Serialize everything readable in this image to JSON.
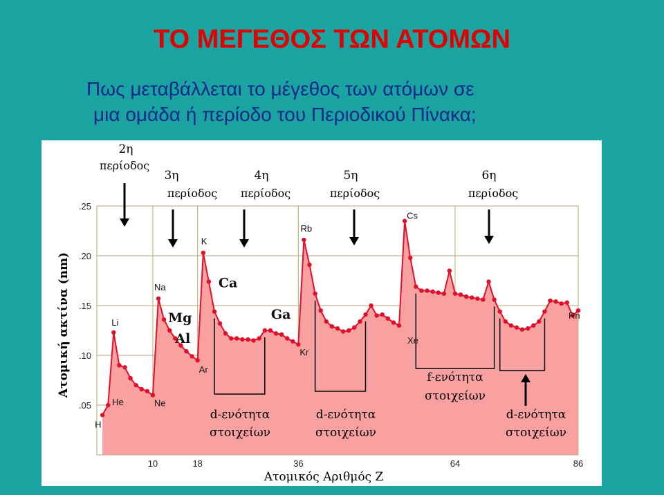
{
  "slide": {
    "title": "ΤΟ ΜΕΓΕΘΟΣ ΤΩΝ ΑΤΟΜΩΝ",
    "subtitle_line1": "Πως μεταβάλλεται το μέγεθος των ατόμων σε",
    "subtitle_line2": "μια ομάδα ή περίοδο του Περιοδικού Πίνακα;"
  },
  "colors": {
    "background": "#1aa3a0",
    "title": "#e00000",
    "subtitle": "#0b2a8a",
    "area_fill": "#f9a0a0",
    "line": "#e0102a"
  },
  "chart_data": {
    "type": "area",
    "xlabel": "Ατομικός Αριθμός Z",
    "ylabel": "Ατομική ακτίνα (nm)",
    "xlim": [
      0,
      86
    ],
    "ylim": [
      0,
      0.25
    ],
    "x_ticks": [
      "10",
      "18",
      "36",
      "64",
      "86"
    ],
    "y_ticks": [
      ".05",
      ".10",
      ".15",
      ".20",
      ".25"
    ],
    "grid": true,
    "series": [
      {
        "values": [
          [
            1,
            0.04
          ],
          [
            2,
            0.05
          ],
          [
            3,
            0.123
          ],
          [
            4,
            0.09
          ],
          [
            5,
            0.088
          ],
          [
            6,
            0.077
          ],
          [
            7,
            0.07
          ],
          [
            8,
            0.066
          ],
          [
            9,
            0.064
          ],
          [
            10,
            0.06
          ],
          [
            11,
            0.157
          ],
          [
            12,
            0.136
          ],
          [
            13,
            0.125
          ],
          [
            14,
            0.117
          ],
          [
            15,
            0.11
          ],
          [
            16,
            0.104
          ],
          [
            17,
            0.099
          ],
          [
            18,
            0.095
          ],
          [
            19,
            0.203
          ],
          [
            20,
            0.174
          ],
          [
            21,
            0.144
          ],
          [
            22,
            0.132
          ],
          [
            23,
            0.122
          ],
          [
            24,
            0.117
          ],
          [
            25,
            0.117
          ],
          [
            26,
            0.116
          ],
          [
            27,
            0.116
          ],
          [
            28,
            0.115
          ],
          [
            29,
            0.117
          ],
          [
            30,
            0.125
          ],
          [
            31,
            0.125
          ],
          [
            32,
            0.122
          ],
          [
            33,
            0.121
          ],
          [
            34,
            0.117
          ],
          [
            35,
            0.114
          ],
          [
            36,
            0.111
          ],
          [
            37,
            0.216
          ],
          [
            38,
            0.191
          ],
          [
            39,
            0.162
          ],
          [
            40,
            0.145
          ],
          [
            41,
            0.134
          ],
          [
            42,
            0.129
          ],
          [
            43,
            0.127
          ],
          [
            44,
            0.124
          ],
          [
            45,
            0.125
          ],
          [
            46,
            0.128
          ],
          [
            47,
            0.134
          ],
          [
            48,
            0.141
          ],
          [
            49,
            0.15
          ],
          [
            50,
            0.14
          ],
          [
            51,
            0.141
          ],
          [
            52,
            0.137
          ],
          [
            53,
            0.133
          ],
          [
            54,
            0.13
          ],
          [
            55,
            0.235
          ],
          [
            56,
            0.198
          ],
          [
            57,
            0.169
          ],
          [
            58,
            0.165
          ],
          [
            59,
            0.165
          ],
          [
            60,
            0.164
          ],
          [
            61,
            0.163
          ],
          [
            62,
            0.162
          ],
          [
            63,
            0.185
          ],
          [
            64,
            0.162
          ],
          [
            65,
            0.161
          ],
          [
            66,
            0.159
          ],
          [
            67,
            0.158
          ],
          [
            68,
            0.157
          ],
          [
            69,
            0.156
          ],
          [
            70,
            0.174
          ],
          [
            71,
            0.156
          ],
          [
            72,
            0.144
          ],
          [
            73,
            0.134
          ],
          [
            74,
            0.13
          ],
          [
            75,
            0.128
          ],
          [
            76,
            0.126
          ],
          [
            77,
            0.127
          ],
          [
            78,
            0.13
          ],
          [
            79,
            0.134
          ],
          [
            80,
            0.144
          ],
          [
            81,
            0.155
          ],
          [
            82,
            0.154
          ],
          [
            83,
            0.152
          ],
          [
            84,
            0.153
          ],
          [
            85,
            0.14
          ],
          [
            86,
            0.145
          ]
        ]
      }
    ],
    "element_labels": [
      {
        "text": "H",
        "x": 1
      },
      {
        "text": "He",
        "x": 2
      },
      {
        "text": "Li",
        "x": 3
      },
      {
        "text": "Ne",
        "x": 10
      },
      {
        "text": "Na",
        "x": 11
      },
      {
        "text": "Mg",
        "x": 12
      },
      {
        "text": "Al",
        "x": 13
      },
      {
        "text": "Ar",
        "x": 18
      },
      {
        "text": "K",
        "x": 19
      },
      {
        "text": "Ca",
        "x": 20
      },
      {
        "text": "Ga",
        "x": 31
      },
      {
        "text": "Kr",
        "x": 36
      },
      {
        "text": "Rb",
        "x": 37
      },
      {
        "text": "Cs",
        "x": 55
      },
      {
        "text": "Xe",
        "x": 54
      },
      {
        "text": "Rn",
        "x": 86
      }
    ],
    "period_labels": [
      {
        "line1": "2η",
        "line2": "περίοδος"
      },
      {
        "line1": "3η",
        "line2": "περίοδος"
      },
      {
        "line1": "4η",
        "line2": "περίοδος"
      },
      {
        "line1": "5η",
        "line2": "περίοδος"
      },
      {
        "line1": "6η",
        "line2": "περίοδος"
      }
    ],
    "block_labels": [
      {
        "line1": "d-ενότητα",
        "line2": "στοιχείων"
      },
      {
        "line1": "d-ενότητα",
        "line2": "στοιχείων"
      },
      {
        "line1": "f-ενότητα",
        "line2": "στοιχείων"
      },
      {
        "line1": "d-ενότητα",
        "line2": "στοιχείων"
      }
    ]
  }
}
